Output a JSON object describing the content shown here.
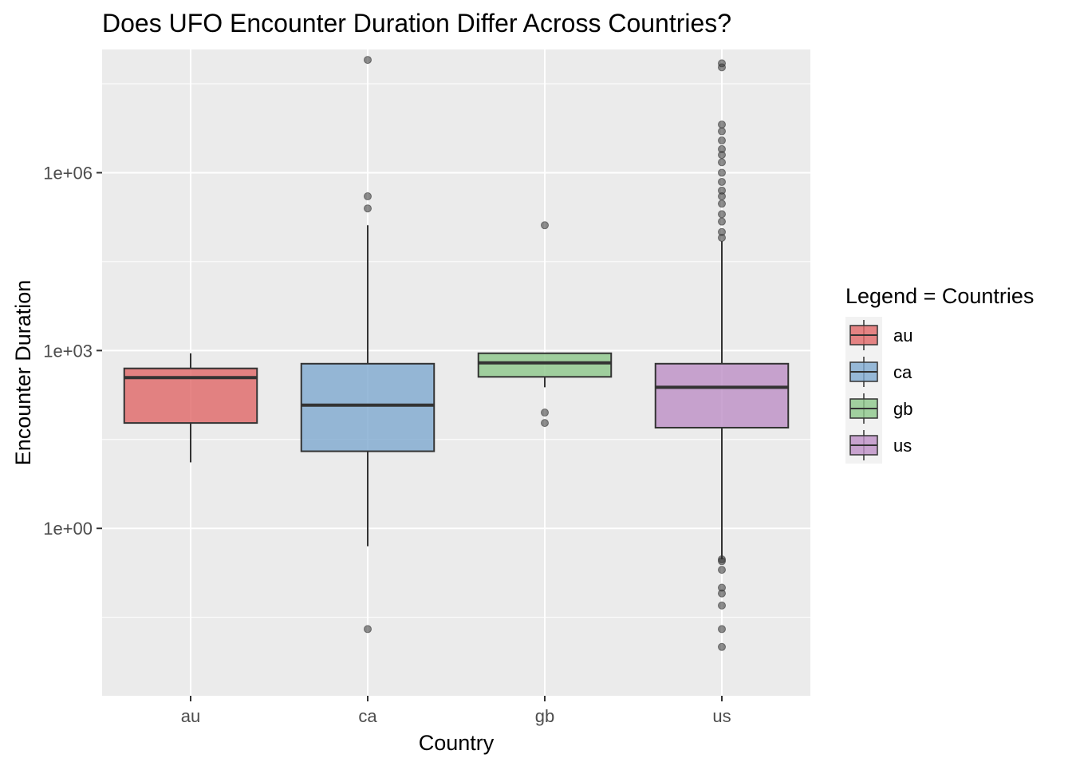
{
  "chart_data": {
    "type": "boxplot",
    "title": "Does UFO Encounter Duration Differ Across Countries?",
    "xlabel": "Country",
    "ylabel": "Encounter Duration",
    "y_scale": "log10",
    "ylim": [
      0.0015,
      120000000
    ],
    "y_ticks": [
      {
        "value": 1,
        "label": "1e+00"
      },
      {
        "value": 1000,
        "label": "1e+03"
      },
      {
        "value": 1000000,
        "label": "1e+06"
      }
    ],
    "y_minor_ticks": [
      0.0316,
      31.6,
      31600,
      31600000
    ],
    "grid": true,
    "categories": [
      "au",
      "ca",
      "gb",
      "us"
    ],
    "boxes": [
      {
        "category": "au",
        "color": "#E06666",
        "whisker_low": 13,
        "q1": 60,
        "median": 350,
        "q3": 500,
        "whisker_high": 900,
        "outliers": []
      },
      {
        "category": "ca",
        "color": "#7EA9CF",
        "whisker_low": 0.5,
        "q1": 20,
        "median": 120,
        "q3": 600,
        "whisker_high": 130000,
        "outliers": [
          0.02,
          250000,
          400000,
          80000000
        ]
      },
      {
        "category": "gb",
        "color": "#8CC78A",
        "whisker_low": 240,
        "q1": 360,
        "median": 620,
        "q3": 900,
        "whisker_high": 900,
        "outliers": [
          60,
          90,
          130000
        ]
      },
      {
        "category": "us",
        "color": "#BD8FC5",
        "whisker_low": 0.3,
        "q1": 50,
        "median": 240,
        "q3": 600,
        "whisker_high": 70000,
        "outliers": [
          0.01,
          0.02,
          0.05,
          0.08,
          0.1,
          0.2,
          0.28,
          0.3,
          80000,
          100000,
          150000,
          200000,
          300000,
          400000,
          500000,
          700000,
          1000000,
          1500000,
          2000000,
          2500000,
          3500000,
          5000000,
          6500000,
          60000000,
          70000000
        ]
      }
    ],
    "legend": {
      "title": "Legend = Countries",
      "position": "right",
      "items": [
        {
          "label": "au",
          "color": "#E06666"
        },
        {
          "label": "ca",
          "color": "#7EA9CF"
        },
        {
          "label": "gb",
          "color": "#8CC78A"
        },
        {
          "label": "us",
          "color": "#BD8FC5"
        }
      ]
    }
  }
}
